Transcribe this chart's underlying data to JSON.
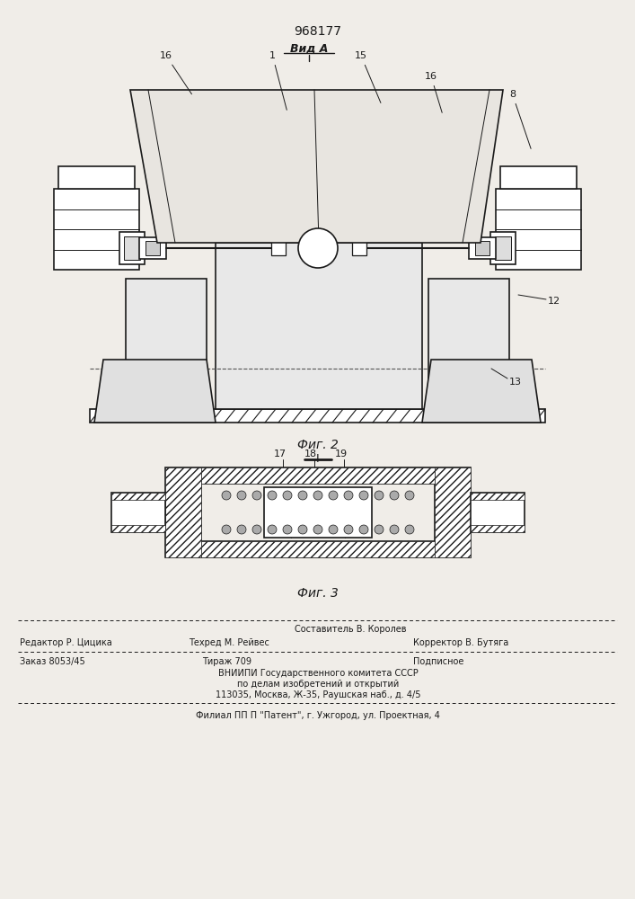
{
  "patent_number": "968177",
  "view_label": "Вид А",
  "fig2_label": "Фиг. 2",
  "fig3_label": "Фиг. 3",
  "separator_label": "I",
  "bg_color": "#f0ede8",
  "line_color": "#1a1a1a",
  "footer_line1": "Составитель В. Королев",
  "footer_line2a": "Редактор Р. Цицика",
  "footer_line2b": "Техред М. Рейвес",
  "footer_line2c": "Корректор В. Бутяга",
  "footer_line3a": "Заказ 8053/45",
  "footer_line3b": "Тираж 709",
  "footer_line3c": "Подписное",
  "footer_line4": "ВНИИПИ Государственного комитета СССР",
  "footer_line5": "по делам изобретений и открытий",
  "footer_line6": "113035, Москва, Ж-35, Раушская наб., д. 4/5",
  "footer_line7": "Филиал ПП П \"Патент\", г. Ужгород, ул. Проектная, 4"
}
